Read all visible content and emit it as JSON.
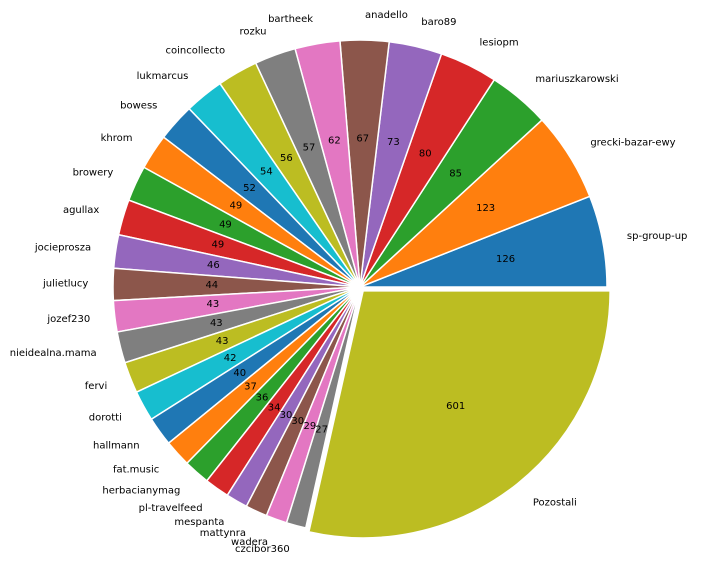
{
  "chart_data": {
    "type": "pie",
    "start_angle_deg": 0,
    "direction": "counterclockwise",
    "explode_last": true,
    "categories": [
      "sp-group-up",
      "grecki-bazar-ewy",
      "mariuszkarowski",
      "lesiopm",
      "baro89",
      "anadello",
      "bartheek",
      "rozku",
      "coincollecto",
      "lukmarcus",
      "bowess",
      "khrom",
      "browery",
      "agullax",
      "jocieprosza",
      "julietlucy",
      "jozef230",
      "nieidealna.mama",
      "fervi",
      "dorotti",
      "hallmann",
      "fat.music",
      "herbacianymag",
      "pl-travelfeed",
      "mespanta",
      "mattynra",
      "wadera",
      "czcibor360",
      "Pozostali"
    ],
    "values": [
      126,
      123,
      85,
      80,
      73,
      67,
      62,
      57,
      56,
      54,
      52,
      49,
      49,
      49,
      46,
      44,
      43,
      43,
      43,
      42,
      40,
      37,
      36,
      34,
      30,
      30,
      29,
      27,
      601
    ],
    "value_labels": [
      "126",
      "123",
      "85",
      "80",
      "73",
      "67",
      "62",
      "57",
      "56",
      "54",
      "52",
      "49",
      "49",
      "49",
      "46",
      "44",
      "43",
      "43",
      "43",
      "42",
      "40",
      "37",
      "36",
      "34",
      "30",
      "30",
      "29",
      "27",
      "601"
    ],
    "colors": [
      "#1f77b4",
      "#ff7f0e",
      "#2ca02c",
      "#d62728",
      "#9467bd",
      "#8c564b",
      "#e377c2",
      "#7f7f7f",
      "#bcbd22",
      "#17becf"
    ],
    "legend": "none",
    "title": ""
  }
}
